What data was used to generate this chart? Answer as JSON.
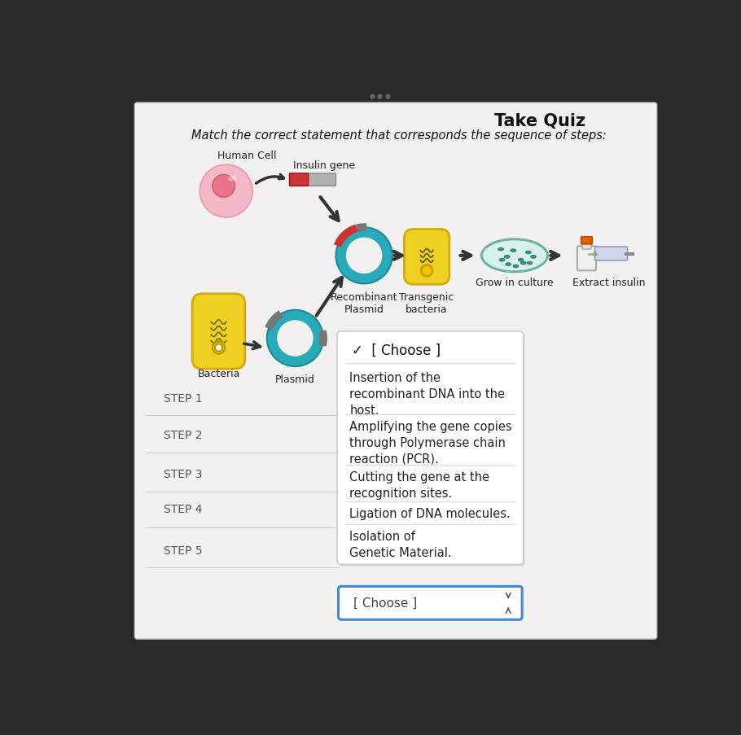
{
  "title": "Take Quiz",
  "subtitle": "Match the correct statement that corresponds the sequence of steps:",
  "bg_color": "#2a2a2a",
  "panel_bg": "#f2f0f0",
  "steps": [
    "STEP 1",
    "STEP 2",
    "STEP 3",
    "STEP 4",
    "STEP 5"
  ],
  "dropdown_header": "✓  [ Choose ]",
  "dropdown_items": [
    "Insertion of the\nrecombinant DNA into the\nhost.",
    "Amplifying the gene copies\nthrough Polymerase chain\nreaction (PCR).",
    "Cutting the gene at the\nrecognition sites.",
    "Ligation of DNA molecules.",
    "Isolation of\nGenetic Material."
  ],
  "choose_btn": "[ Choose ]",
  "diagram_labels": {
    "human_cell": "Human Cell",
    "insulin_gene": "Insulin gene",
    "recombinant": "Recombinant\nPlasmid",
    "transgenic": "Transgenic\nbacteria",
    "grow": "Grow in culture",
    "extract": "Extract insulin",
    "bacteria": "Bacteria",
    "plasmid": "Plasmid"
  }
}
